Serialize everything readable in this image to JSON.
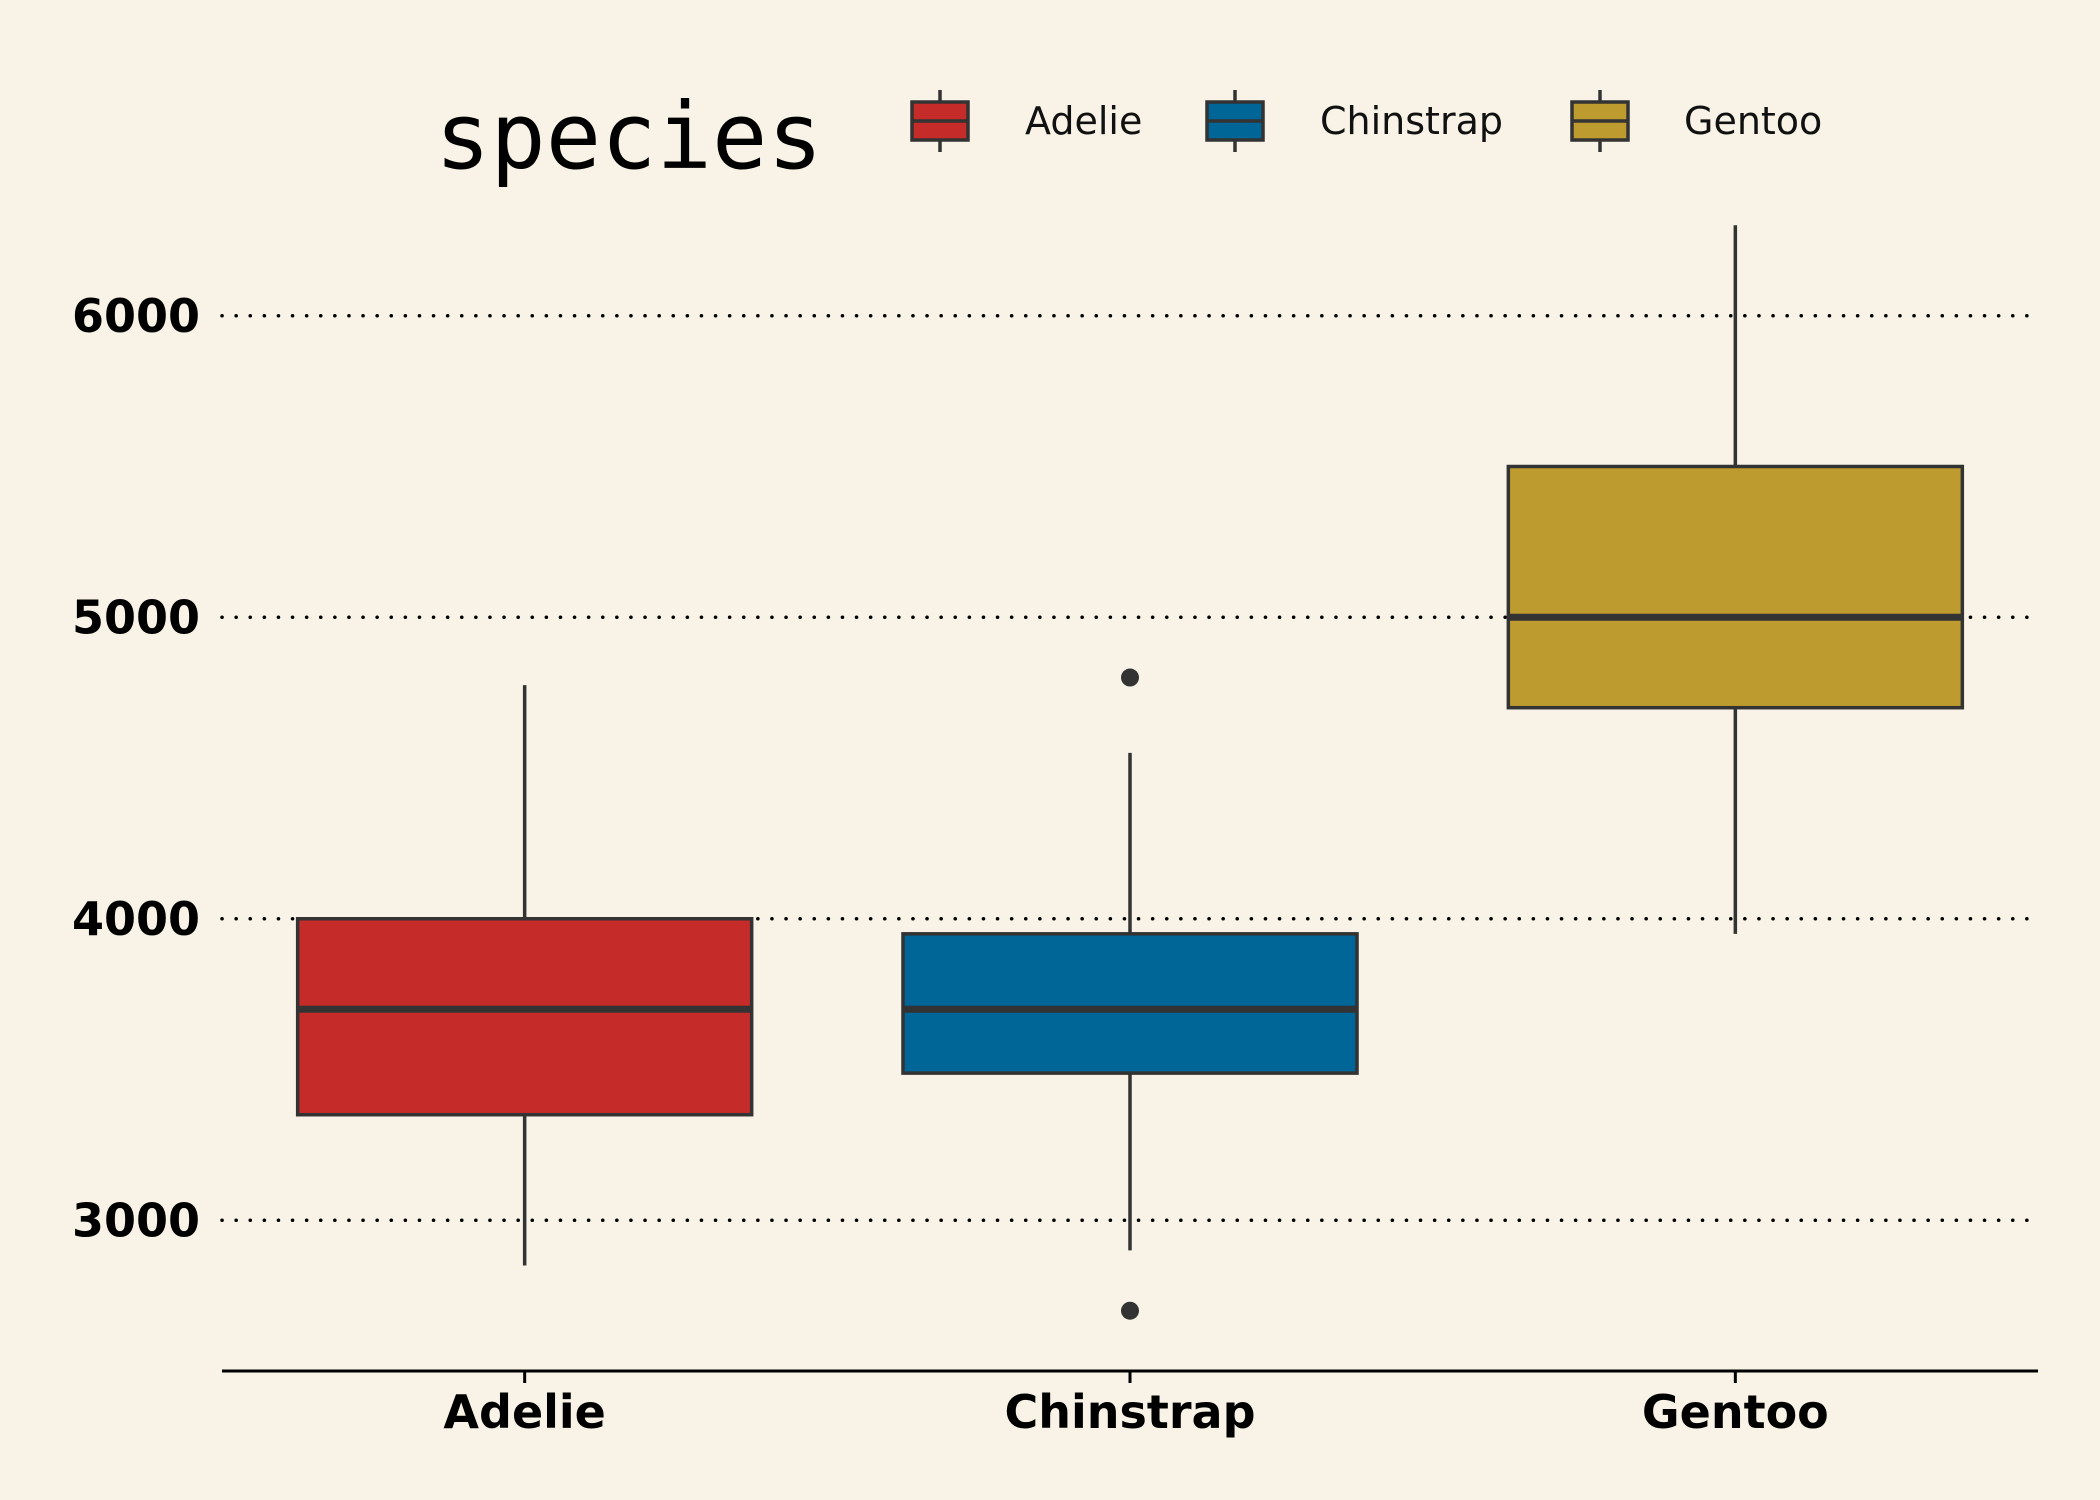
{
  "chart_data": {
    "type": "box",
    "title": "",
    "xlabel": "",
    "ylabel": "",
    "ylim": [
      2500,
      6500
    ],
    "yticks": [
      3000,
      4000,
      5000,
      6000
    ],
    "grid": "horizontal dotted",
    "legend": {
      "title": "species",
      "placement": "top"
    },
    "categories": [
      "Adelie",
      "Chinstrap",
      "Gentoo"
    ],
    "series": [
      {
        "name": "Adelie",
        "color": "#c52b28",
        "whisker_low": 2850,
        "q1": 3350,
        "median": 3700,
        "q3": 4000,
        "whisker_high": 4775,
        "outliers": []
      },
      {
        "name": "Chinstrap",
        "color": "#006597",
        "whisker_low": 2900,
        "q1": 3488,
        "median": 3700,
        "q3": 3950,
        "whisker_high": 4550,
        "outliers": [
          4800,
          2700
        ]
      },
      {
        "name": "Gentoo",
        "color": "#be9b2e",
        "whisker_low": 3950,
        "q1": 4700,
        "median": 5000,
        "q3": 5500,
        "whisker_high": 6300,
        "outliers": []
      }
    ]
  }
}
